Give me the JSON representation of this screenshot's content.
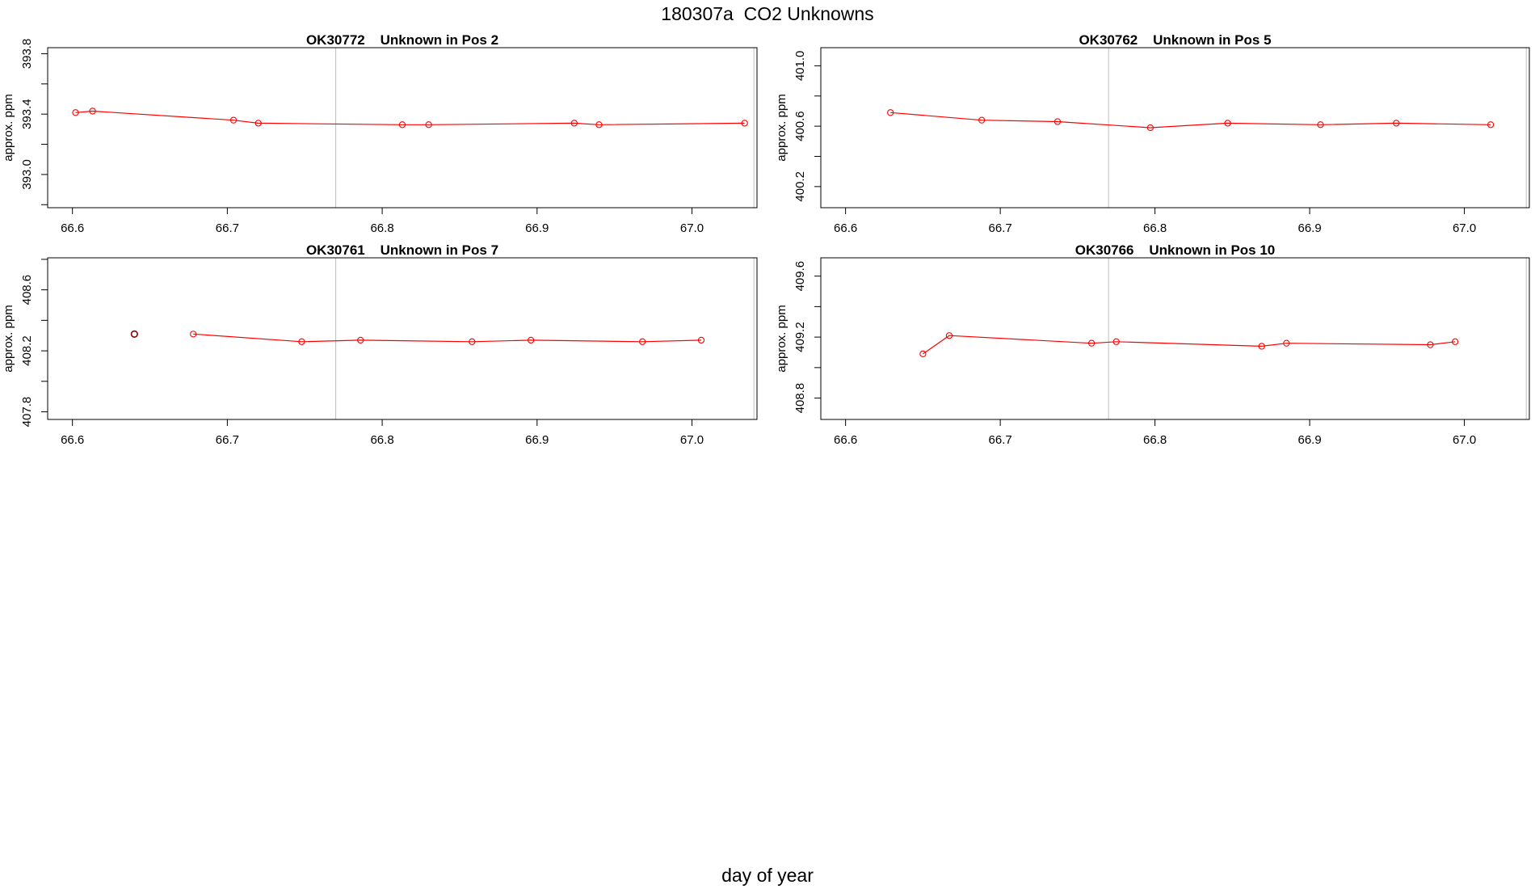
{
  "figure": {
    "title": "180307a  CO2 Unknowns",
    "xlabel": "day of year"
  },
  "colors": {
    "series": "#ff0000",
    "outlier": "#800000",
    "axis": "#000000",
    "vline": "#bebebe"
  },
  "chart_data": [
    {
      "type": "line",
      "title": "OK30772    Unknown in Pos 2",
      "xlabel": "",
      "ylabel": "approx. ppm",
      "xlim": [
        66.584,
        67.042
      ],
      "ylim": [
        392.78,
        393.84
      ],
      "xticks": [
        "66.6",
        "66.7",
        "66.8",
        "66.9",
        "67.0"
      ],
      "yticks": [
        "393.0",
        "393.4",
        "393.8"
      ],
      "vlines": [
        66.77,
        67.04
      ],
      "points": [
        {
          "x": 66.602,
          "y": 393.41
        },
        {
          "x": 66.613,
          "y": 393.42
        },
        {
          "x": 66.704,
          "y": 393.36
        },
        {
          "x": 66.72,
          "y": 393.34
        },
        {
          "x": 66.813,
          "y": 393.33
        },
        {
          "x": 66.83,
          "y": 393.33
        },
        {
          "x": 66.924,
          "y": 393.34
        },
        {
          "x": 66.94,
          "y": 393.33
        },
        {
          "x": 67.034,
          "y": 393.34
        }
      ]
    },
    {
      "type": "line",
      "title": "OK30762    Unknown in Pos 5",
      "xlabel": "",
      "ylabel": "approx. ppm",
      "xlim": [
        66.584,
        67.042
      ],
      "ylim": [
        400.06,
        401.12
      ],
      "xticks": [
        "66.6",
        "66.7",
        "66.8",
        "66.9",
        "67.0"
      ],
      "yticks": [
        "400.2",
        "400.6",
        "401.0"
      ],
      "vlines": [
        66.77,
        67.04
      ],
      "points": [
        {
          "x": 66.629,
          "y": 400.69
        },
        {
          "x": 66.688,
          "y": 400.64
        },
        {
          "x": 66.737,
          "y": 400.63
        },
        {
          "x": 66.797,
          "y": 400.59
        },
        {
          "x": 66.847,
          "y": 400.62
        },
        {
          "x": 66.907,
          "y": 400.61
        },
        {
          "x": 66.956,
          "y": 400.62
        },
        {
          "x": 67.017,
          "y": 400.61
        }
      ]
    },
    {
      "type": "line",
      "title": "OK30761    Unknown in Pos 7",
      "xlabel": "",
      "ylabel": "approx. ppm",
      "xlim": [
        66.584,
        67.042
      ],
      "ylim": [
        407.75,
        408.81
      ],
      "xticks": [
        "66.6",
        "66.7",
        "66.8",
        "66.9",
        "67.0"
      ],
      "yticks": [
        "407.8",
        "408.2",
        "408.6"
      ],
      "vlines": [
        66.77,
        67.04
      ],
      "outliers": [
        {
          "x": 66.64,
          "y": 408.31
        }
      ],
      "points": [
        {
          "x": 66.678,
          "y": 408.31
        },
        {
          "x": 66.748,
          "y": 408.26
        },
        {
          "x": 66.786,
          "y": 408.27
        },
        {
          "x": 66.858,
          "y": 408.26
        },
        {
          "x": 66.896,
          "y": 408.27
        },
        {
          "x": 66.968,
          "y": 408.26
        },
        {
          "x": 67.006,
          "y": 408.27
        }
      ]
    },
    {
      "type": "line",
      "title": "OK30766    Unknown in Pos 10",
      "xlabel": "",
      "ylabel": "approx. ppm",
      "xlim": [
        66.584,
        67.042
      ],
      "ylim": [
        408.66,
        409.72
      ],
      "xticks": [
        "66.6",
        "66.7",
        "66.8",
        "66.9",
        "67.0"
      ],
      "yticks": [
        "408.8",
        "409.2",
        "409.6"
      ],
      "vlines": [
        66.77,
        67.04
      ],
      "points": [
        {
          "x": 66.65,
          "y": 409.09
        },
        {
          "x": 66.667,
          "y": 409.21
        },
        {
          "x": 66.759,
          "y": 409.16
        },
        {
          "x": 66.775,
          "y": 409.17
        },
        {
          "x": 66.869,
          "y": 409.14
        },
        {
          "x": 66.885,
          "y": 409.16
        },
        {
          "x": 66.978,
          "y": 409.15
        },
        {
          "x": 66.994,
          "y": 409.17
        }
      ]
    }
  ]
}
